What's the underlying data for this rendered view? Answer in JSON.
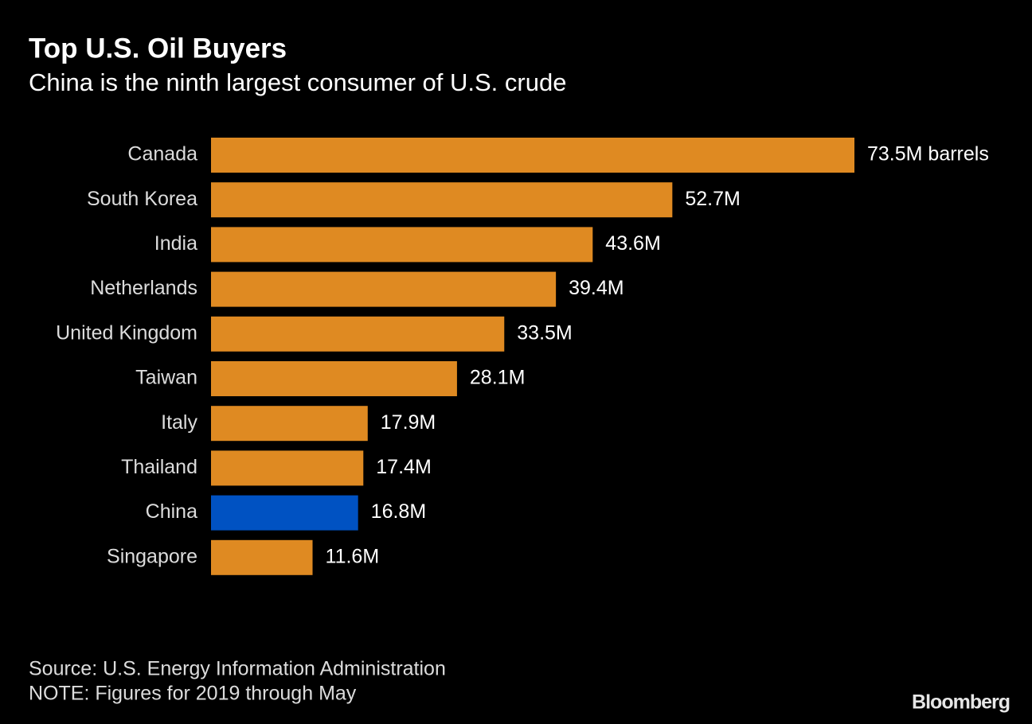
{
  "chart_data": {
    "type": "bar",
    "orientation": "horizontal",
    "title": "Top U.S. Oil Buyers",
    "subtitle": "China is the ninth largest consumer of U.S. crude",
    "categories": [
      "Canada",
      "South Korea",
      "India",
      "Netherlands",
      "United Kingdom",
      "Taiwan",
      "Italy",
      "Thailand",
      "China",
      "Singapore"
    ],
    "values": [
      73.5,
      52.7,
      43.6,
      39.4,
      33.5,
      28.1,
      17.9,
      17.4,
      16.8,
      11.6
    ],
    "value_labels": [
      "73.5M barrels",
      "52.7M",
      "43.6M",
      "39.4M",
      "33.5M",
      "28.1M",
      "17.9M",
      "17.4M",
      "16.8M",
      "11.6M"
    ],
    "colors": [
      "#df8a22",
      "#df8a22",
      "#df8a22",
      "#df8a22",
      "#df8a22",
      "#df8a22",
      "#df8a22",
      "#df8a22",
      "#0052c2",
      "#df8a22"
    ],
    "source": "Source: U.S. Energy Information Administration",
    "note": "NOTE: Figures for 2019 through May",
    "brand": "Bloomberg"
  }
}
